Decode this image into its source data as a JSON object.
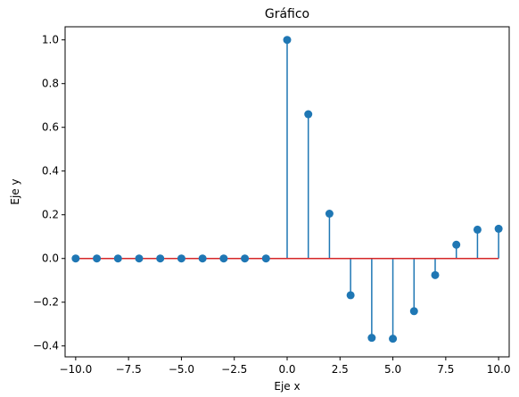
{
  "chart_data": {
    "type": "stem",
    "title": "Gráfico",
    "xlabel": "Eje x",
    "ylabel": "Eje y",
    "xlim": [
      -10.5,
      10.5
    ],
    "ylim": [
      -0.45,
      1.06
    ],
    "x_ticks": [
      -10.0,
      -7.5,
      -5.0,
      -2.5,
      0.0,
      2.5,
      5.0,
      7.5,
      10.0
    ],
    "x_tick_labels": [
      "−10.0",
      "−7.5",
      "−5.0",
      "−2.5",
      "0.0",
      "2.5",
      "5.0",
      "7.5",
      "10.0"
    ],
    "y_ticks": [
      -0.4,
      -0.2,
      0.0,
      0.2,
      0.4,
      0.6,
      0.8,
      1.0
    ],
    "y_tick_labels": [
      "−0.4",
      "−0.2",
      "0.0",
      "0.2",
      "0.4",
      "0.6",
      "0.8",
      "1.0"
    ],
    "grid": false,
    "colors": {
      "stem": "#1f77b4",
      "baseline": "#d62728"
    },
    "series": [
      {
        "x": [
          -10,
          -9,
          -8,
          -7,
          -6,
          -5,
          -4,
          -3,
          -2,
          -1,
          0,
          1,
          2,
          3,
          4,
          5,
          6,
          7,
          8,
          9,
          10
        ],
        "values": [
          0,
          0,
          0,
          0,
          0,
          0,
          0,
          0,
          0,
          0,
          1.0,
          0.66,
          0.205,
          -0.168,
          -0.363,
          -0.367,
          -0.241,
          -0.076,
          0.063,
          0.132,
          0.136
        ]
      }
    ]
  }
}
